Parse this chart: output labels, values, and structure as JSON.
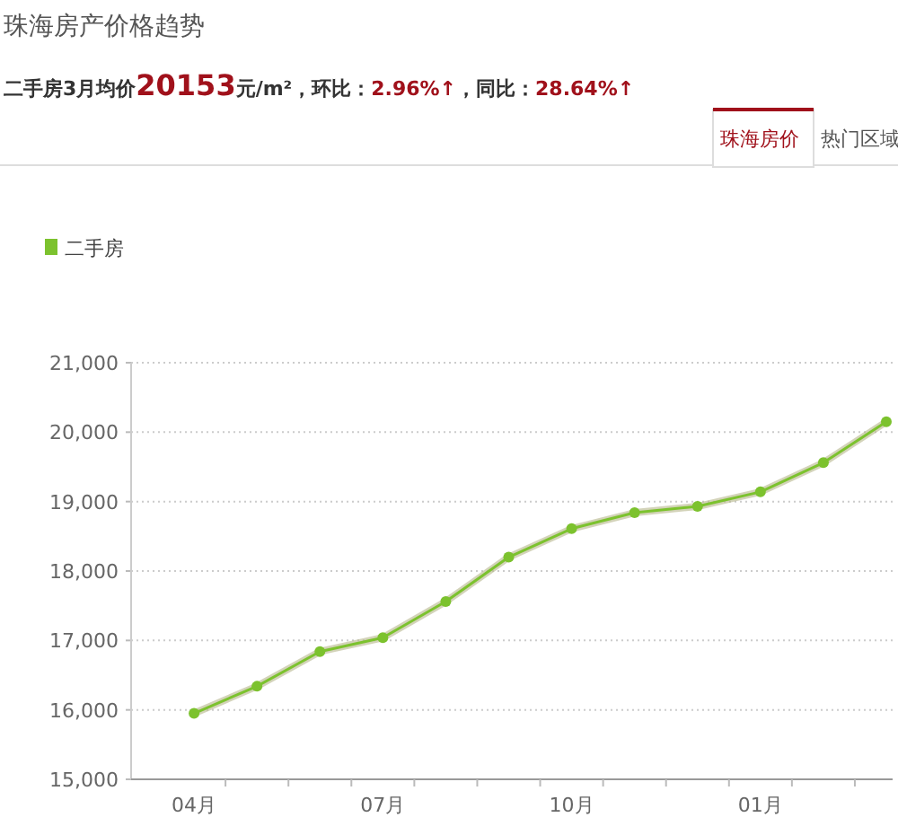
{
  "chart_data": {
    "type": "line",
    "title": "珠海房产价格趋势",
    "subtitle": "二手房3月均价20153元/m²，环比：2.96%↑，同比：28.64%↑",
    "annotations": [
      "珠海房价",
      "热门区域"
    ],
    "categories": [
      "04月",
      null,
      null,
      "07月",
      null,
      null,
      "10月",
      null,
      null,
      "01月",
      null,
      null
    ],
    "series": [
      {
        "name": "二手房",
        "color": "#7cc22e",
        "values": [
          15950,
          16340,
          16840,
          17040,
          17560,
          18200,
          18610,
          18840,
          18930,
          19140,
          19560,
          20150
        ]
      }
    ],
    "ylim": [
      15000,
      21000
    ],
    "yticks": [
      {
        "value": 15000,
        "label": "15,000"
      },
      {
        "value": 16000,
        "label": "16,000"
      },
      {
        "value": 17000,
        "label": "17,000"
      },
      {
        "value": 18000,
        "label": "18,000"
      },
      {
        "value": 19000,
        "label": "19,000"
      },
      {
        "value": 20000,
        "label": "20,000"
      },
      {
        "value": 21000,
        "label": "21,000"
      }
    ],
    "grid": "y",
    "legend": "top left",
    "marker": "circle"
  }
}
